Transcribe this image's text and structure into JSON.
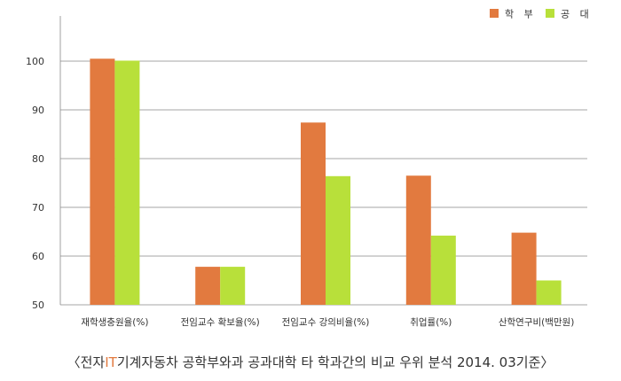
{
  "chart_data": {
    "type": "bar",
    "categories": [
      "재학생충원율(%)",
      "전임교수 확보율(%)",
      "전임교수 강의비율(%)",
      "취업률(%)",
      "산학연구비(백만원)"
    ],
    "series": [
      {
        "name": "학 부",
        "values": [
          100.5,
          57.8,
          87.4,
          76.5,
          64.8
        ],
        "color": "#e27a3f"
      },
      {
        "name": "공 대",
        "values": [
          100.1,
          57.8,
          76.4,
          64.2,
          55.0
        ],
        "color": "#b8e03a"
      }
    ],
    "ylim": [
      50,
      100
    ],
    "yticks": [
      50,
      60,
      70,
      80,
      90,
      100
    ],
    "grid": true,
    "legend_position": "top-right",
    "gridline_color": "#888888"
  },
  "caption": {
    "open": "〈전자",
    "highlight": "IT",
    "rest": "기계자동차 공학부와과 공과대학 타 학과간의 비교 우위 분석 2014. 03기준〉"
  }
}
